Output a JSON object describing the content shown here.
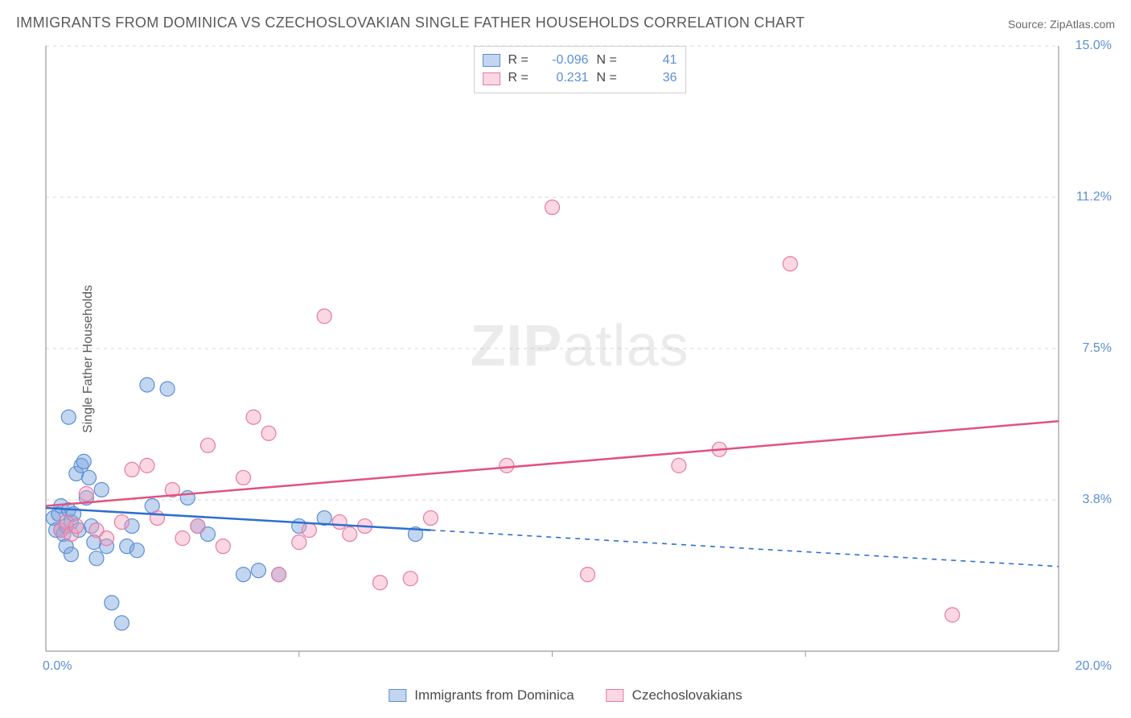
{
  "title": "IMMIGRANTS FROM DOMINICA VS CZECHOSLOVAKIAN SINGLE FATHER HOUSEHOLDS CORRELATION CHART",
  "source": "Source: ZipAtlas.com",
  "ylabel": "Single Father Households",
  "watermark_bold": "ZIP",
  "watermark_thin": "atlas",
  "colors": {
    "series_a_fill": "rgba(121,163,220,0.45)",
    "series_a_stroke": "#5b8fd6",
    "series_b_fill": "rgba(244,160,188,0.42)",
    "series_b_stroke": "#e47ba3",
    "axis": "#9a9a9a",
    "grid": "#d6d6d6",
    "tick_text": "#5b8fd6",
    "line_a": "#2e6fd1",
    "line_b": "#e0527f"
  },
  "chart": {
    "type": "scatter",
    "xlim": [
      0,
      20
    ],
    "ylim": [
      0,
      15
    ],
    "xtick_step": 5,
    "ytick_step": 3.75,
    "ytick_labels": [
      "3.8%",
      "7.5%",
      "11.2%",
      "15.0%"
    ],
    "origin_label": "0.0%",
    "xmax_label": "20.0%",
    "marker_radius": 9,
    "line_width": 2.5,
    "grid_dash": "4,5"
  },
  "series_a": {
    "name": "Immigrants from Dominica",
    "R": "-0.096",
    "N": "41",
    "points": [
      [
        0.15,
        3.3
      ],
      [
        0.2,
        3.0
      ],
      [
        0.25,
        3.4
      ],
      [
        0.3,
        3.0
      ],
      [
        0.3,
        3.6
      ],
      [
        0.35,
        2.9
      ],
      [
        0.4,
        3.1
      ],
      [
        0.4,
        2.6
      ],
      [
        0.45,
        3.5
      ],
      [
        0.45,
        5.8
      ],
      [
        0.5,
        3.2
      ],
      [
        0.5,
        2.4
      ],
      [
        0.55,
        3.4
      ],
      [
        0.6,
        4.4
      ],
      [
        0.65,
        3.0
      ],
      [
        0.7,
        4.6
      ],
      [
        0.75,
        4.7
      ],
      [
        0.8,
        3.8
      ],
      [
        0.85,
        4.3
      ],
      [
        0.9,
        3.1
      ],
      [
        0.95,
        2.7
      ],
      [
        1.0,
        2.3
      ],
      [
        1.1,
        4.0
      ],
      [
        1.2,
        2.6
      ],
      [
        1.3,
        1.2
      ],
      [
        1.5,
        0.7
      ],
      [
        1.6,
        2.6
      ],
      [
        1.7,
        3.1
      ],
      [
        1.8,
        2.5
      ],
      [
        2.0,
        6.6
      ],
      [
        2.1,
        3.6
      ],
      [
        2.4,
        6.5
      ],
      [
        2.8,
        3.8
      ],
      [
        3.0,
        3.1
      ],
      [
        3.2,
        2.9
      ],
      [
        3.9,
        1.9
      ],
      [
        4.2,
        2.0
      ],
      [
        4.6,
        1.9
      ],
      [
        5.0,
        3.1
      ],
      [
        5.5,
        3.3
      ],
      [
        7.3,
        2.9
      ]
    ],
    "trend": {
      "x1": 0,
      "y1": 3.55,
      "x2_solid": 7.6,
      "y2_solid": 3.0,
      "x2": 20,
      "y2": 2.1
    }
  },
  "series_b": {
    "name": "Czechoslovakians",
    "R": "0.231",
    "N": "36",
    "points": [
      [
        0.3,
        3.0
      ],
      [
        0.4,
        3.2
      ],
      [
        0.5,
        2.9
      ],
      [
        0.6,
        3.1
      ],
      [
        0.8,
        3.9
      ],
      [
        1.0,
        3.0
      ],
      [
        1.2,
        2.8
      ],
      [
        1.5,
        3.2
      ],
      [
        1.7,
        4.5
      ],
      [
        2.0,
        4.6
      ],
      [
        2.2,
        3.3
      ],
      [
        2.5,
        4.0
      ],
      [
        2.7,
        2.8
      ],
      [
        3.0,
        3.1
      ],
      [
        3.2,
        5.1
      ],
      [
        3.5,
        2.6
      ],
      [
        3.9,
        4.3
      ],
      [
        4.1,
        5.8
      ],
      [
        4.4,
        5.4
      ],
      [
        4.6,
        1.9
      ],
      [
        5.0,
        2.7
      ],
      [
        5.2,
        3.0
      ],
      [
        5.5,
        8.3
      ],
      [
        5.8,
        3.2
      ],
      [
        6.0,
        2.9
      ],
      [
        6.3,
        3.1
      ],
      [
        6.6,
        1.7
      ],
      [
        7.2,
        1.8
      ],
      [
        7.6,
        3.3
      ],
      [
        9.1,
        4.6
      ],
      [
        10.0,
        11.0
      ],
      [
        10.7,
        1.9
      ],
      [
        12.5,
        4.6
      ],
      [
        13.3,
        5.0
      ],
      [
        14.7,
        9.6
      ],
      [
        17.9,
        0.9
      ]
    ],
    "trend": {
      "x1": 0,
      "y1": 3.6,
      "x2": 20,
      "y2": 5.7
    }
  },
  "legend_top": {
    "r_label": "R =",
    "n_label": "N ="
  }
}
